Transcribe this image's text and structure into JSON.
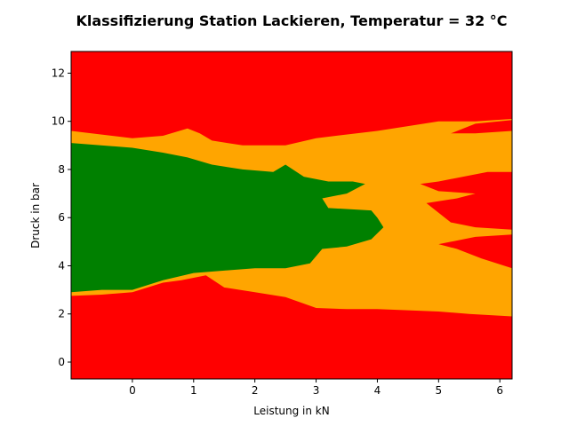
{
  "chart_data": {
    "type": "heatmap",
    "title": "Klassifizierung Station Lackieren, Temperatur = 32 °C",
    "xlabel": "Leistung in kN",
    "ylabel": "Druck in bar",
    "xlim": [
      -1.0,
      6.2
    ],
    "ylim": [
      -0.7,
      12.9
    ],
    "xticks": [
      "0",
      "1",
      "2",
      "3",
      "4",
      "5",
      "6"
    ],
    "yticks": [
      "0",
      "2",
      "4",
      "6",
      "8",
      "10",
      "12"
    ],
    "grid": false,
    "legend": "none",
    "classes": [
      {
        "color": "#ff0000"
      },
      {
        "color": "#ffa500"
      },
      {
        "color": "#008000"
      }
    ],
    "regions": {
      "orange_upper_boundary": [
        [
          -1.0,
          9.6
        ],
        [
          0.0,
          9.3
        ],
        [
          0.5,
          9.4
        ],
        [
          0.9,
          9.7
        ],
        [
          1.1,
          9.5
        ],
        [
          1.3,
          9.2
        ],
        [
          1.8,
          9.0
        ],
        [
          2.5,
          9.0
        ],
        [
          3.0,
          9.3
        ],
        [
          4.0,
          9.6
        ],
        [
          4.5,
          9.8
        ],
        [
          5.0,
          10.0
        ],
        [
          5.6,
          10.0
        ],
        [
          6.2,
          10.1
        ]
      ],
      "orange_lower_boundary": [
        [
          -1.0,
          2.75
        ],
        [
          -0.5,
          2.8
        ],
        [
          0.0,
          2.9
        ],
        [
          0.5,
          3.3
        ],
        [
          0.8,
          3.4
        ],
        [
          1.2,
          3.6
        ],
        [
          1.5,
          3.1
        ],
        [
          2.0,
          2.9
        ],
        [
          2.5,
          2.7
        ],
        [
          3.0,
          2.25
        ],
        [
          3.5,
          2.2
        ],
        [
          4.0,
          2.2
        ],
        [
          5.0,
          2.1
        ],
        [
          5.5,
          2.0
        ],
        [
          6.2,
          1.9
        ]
      ],
      "green_boundary": [
        [
          -1.0,
          9.1
        ],
        [
          0.0,
          8.9
        ],
        [
          0.5,
          8.7
        ],
        [
          0.9,
          8.5
        ],
        [
          1.3,
          8.2
        ],
        [
          1.8,
          8.0
        ],
        [
          2.3,
          7.9
        ],
        [
          2.5,
          8.2
        ],
        [
          2.8,
          7.7
        ],
        [
          3.2,
          7.5
        ],
        [
          3.6,
          7.5
        ],
        [
          3.8,
          7.4
        ],
        [
          3.5,
          7.0
        ],
        [
          3.1,
          6.8
        ],
        [
          3.2,
          6.4
        ],
        [
          3.9,
          6.3
        ],
        [
          4.0,
          6.0
        ],
        [
          4.1,
          5.6
        ],
        [
          3.9,
          5.1
        ],
        [
          3.5,
          4.8
        ],
        [
          3.1,
          4.7
        ],
        [
          2.9,
          4.1
        ],
        [
          2.5,
          3.9
        ],
        [
          2.0,
          3.9
        ],
        [
          1.5,
          3.8
        ],
        [
          1.0,
          3.7
        ],
        [
          0.5,
          3.4
        ],
        [
          0.0,
          3.0
        ],
        [
          -0.5,
          3.0
        ],
        [
          -1.0,
          2.9
        ]
      ],
      "red_patch_upper_right": [
        [
          6.2,
          9.6
        ],
        [
          5.6,
          9.5
        ],
        [
          5.2,
          9.5
        ],
        [
          5.6,
          9.9
        ],
        [
          6.2,
          10.05
        ]
      ],
      "red_patch_mid_right": [
        [
          6.2,
          7.9
        ],
        [
          5.8,
          7.9
        ],
        [
          5.0,
          7.5
        ],
        [
          4.7,
          7.4
        ],
        [
          5.0,
          7.1
        ],
        [
          5.6,
          7.0
        ],
        [
          5.3,
          6.8
        ],
        [
          4.8,
          6.6
        ],
        [
          5.2,
          5.8
        ],
        [
          5.6,
          5.6
        ],
        [
          6.2,
          5.5
        ]
      ],
      "red_patch_lower_right": [
        [
          6.2,
          5.3
        ],
        [
          5.6,
          5.2
        ],
        [
          5.0,
          4.9
        ],
        [
          5.3,
          4.7
        ],
        [
          5.7,
          4.3
        ],
        [
          6.2,
          3.9
        ]
      ]
    }
  }
}
